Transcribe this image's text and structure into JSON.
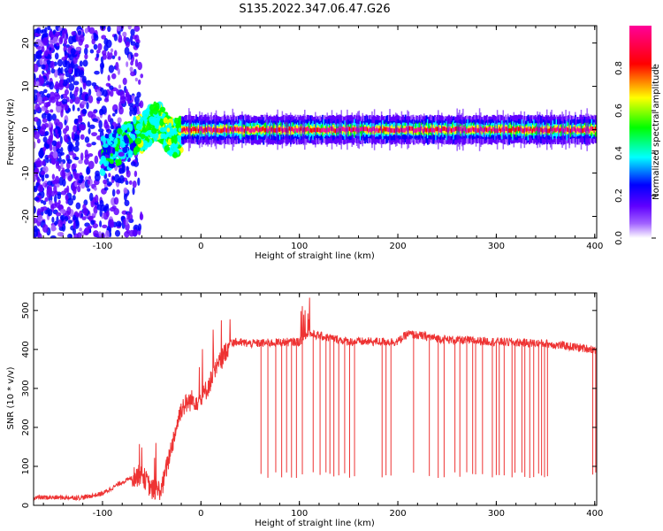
{
  "title": "S135.2022.347.06.47.G26",
  "chart_data": [
    {
      "type": "heatmap",
      "xlabel": "Height of straight line (km)",
      "ylabel": "Frequency (Hz)",
      "xlim": [
        -170,
        402
      ],
      "ylim": [
        -25,
        24
      ],
      "xticks": [
        -100,
        0,
        100,
        200,
        300,
        400
      ],
      "yticks": [
        -20,
        -10,
        0,
        10,
        20
      ],
      "grid": false,
      "colorbar": {
        "label": "Normalized spectral amplitude",
        "range": [
          0,
          1
        ],
        "ticks": [
          "0.0",
          "0.2",
          "0.4",
          "0.6",
          "0.8"
        ],
        "colors": [
          "#ffffff",
          "#7a00ff",
          "#0000ff",
          "#00ffff",
          "#00ff00",
          "#ffff00",
          "#ff0000",
          "#ff00aa"
        ]
      },
      "features": [
        {
          "region": "x < -60 km",
          "description_values": {
            "frequency_spread_hz": [
              -25,
              24
            ],
            "amplitude": 0.2
          }
        },
        {
          "region": "-60 to -20 km",
          "description_values": {
            "center_freq_hz": 3,
            "amplitude": 0.5
          }
        },
        {
          "region": "x > -20 km",
          "description_values": {
            "center_freq_hz": 0,
            "band_width_hz": 2,
            "amplitude": 0.9
          }
        }
      ]
    },
    {
      "type": "line",
      "xlabel": "Height of straight line (km)",
      "ylabel": "SNR (10 * v/v)",
      "xlim": [
        -170,
        402
      ],
      "ylim": [
        0,
        545
      ],
      "xticks": [
        -100,
        0,
        100,
        200,
        300,
        400
      ],
      "yticks": [
        0,
        100,
        200,
        300,
        400,
        500
      ],
      "grid": false,
      "series": [
        {
          "color": "#ee3333",
          "x": [
            -170,
            -120,
            -100,
            -80,
            -60,
            -50,
            -40,
            -30,
            -20,
            -10,
            0,
            10,
            20,
            30,
            50,
            100,
            110,
            150,
            200,
            210,
            250,
            300,
            350,
            400,
            402
          ],
          "values": [
            20,
            20,
            30,
            60,
            80,
            40,
            40,
            150,
            250,
            270,
            270,
            320,
            370,
            420,
            415,
            420,
            440,
            420,
            420,
            440,
            425,
            420,
            415,
            400,
            395
          ],
          "dropouts_x": [
            61,
            68,
            76,
            82,
            87,
            92,
            97,
            103,
            114,
            121,
            127,
            131,
            135,
            140,
            146,
            151,
            156,
            184,
            188,
            193,
            216,
            232,
            241,
            247,
            258,
            263,
            270,
            276,
            279,
            286,
            296,
            300,
            303,
            308,
            316,
            319,
            326,
            329,
            334,
            338,
            343,
            346,
            349,
            352,
            398,
            401
          ],
          "dropout_floor": 70
        }
      ]
    }
  ]
}
